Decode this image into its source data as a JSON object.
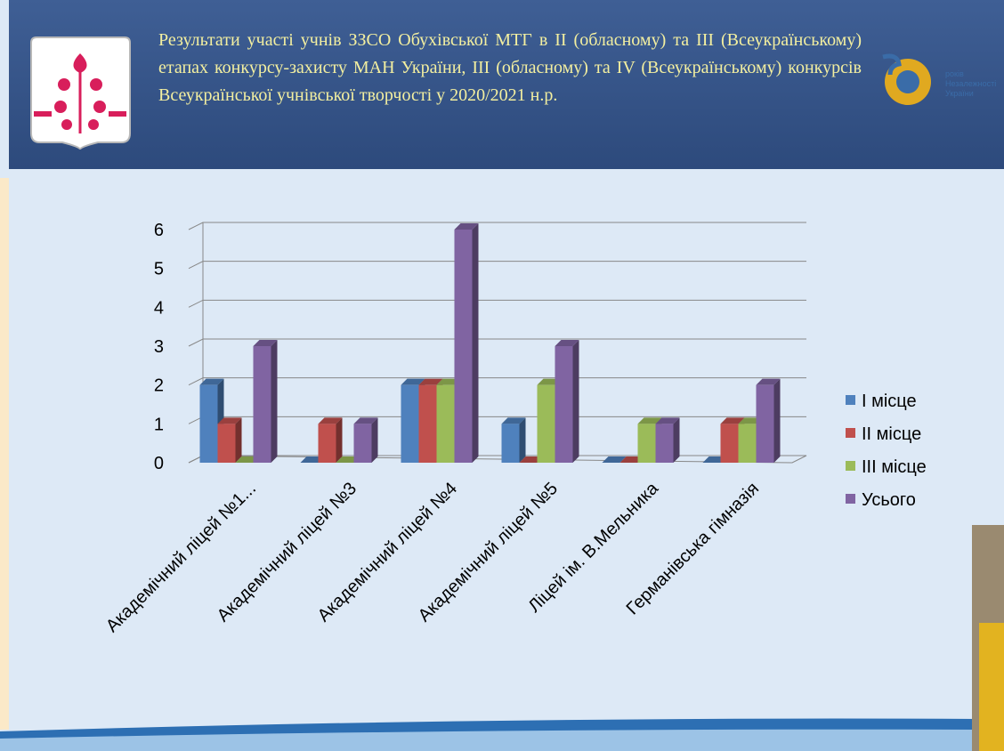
{
  "chart_data": {
    "type": "bar3d",
    "title": "Результати участі учнів ЗЗСО Обухівської МТГ в ІІ (обласному) та ІІІ (Всеукраїнському) етапах конкурсу-захисту МАН України, ІІІ (обласному) та IV (Всеукраїнському) конкурсів Всеукраїнської учнівської творчості у 2020/2021 н.р.",
    "badge_lines": [
      "років",
      "Незалежності",
      "України"
    ],
    "categories": [
      "Академічний ліцей №1...",
      "Академічний ліцей №3",
      "Академічний ліцей №4",
      "Академічний ліцей №5",
      "Ліцей ім. В.Мельника",
      "Германівська гімназія"
    ],
    "series": [
      {
        "name": "І місце",
        "color": "#4f81bd",
        "values": [
          2,
          0,
          2,
          1,
          0,
          0
        ]
      },
      {
        "name": "ІІ місце",
        "color": "#c0504d",
        "values": [
          1,
          1,
          2,
          0,
          0,
          1
        ]
      },
      {
        "name": "ІІІ місце",
        "color": "#9bbb59",
        "values": [
          0,
          0,
          2,
          2,
          1,
          1
        ]
      },
      {
        "name": "Усього",
        "color": "#8064a2",
        "values": [
          3,
          1,
          6,
          3,
          1,
          2
        ]
      }
    ],
    "ylim": [
      0,
      6
    ],
    "yticks": [
      0,
      1,
      2,
      3,
      4,
      5,
      6
    ],
    "grid": true,
    "legend": "right"
  }
}
